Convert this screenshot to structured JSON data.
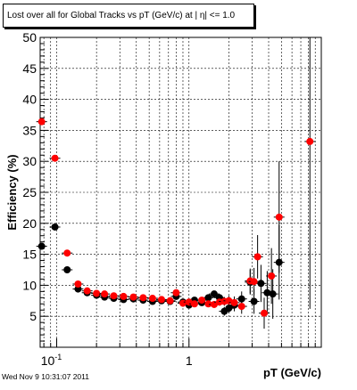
{
  "title": "Lost over all for Global Tracks vs pT (GeV/c) at |  η| <= 1.0",
  "footer": "Wed Nov  9 10:31:07 2011",
  "chart_data": {
    "type": "scatter",
    "xlabel": "pT (GeV/c)",
    "ylabel": "Efficiency (%)",
    "xscale": "log",
    "xlim": [
      0.075,
      10
    ],
    "ylim": [
      0,
      50
    ],
    "yticks": [
      5,
      10,
      15,
      20,
      25,
      30,
      35,
      40,
      45,
      50
    ],
    "xtick_labels": [
      "10^-1",
      "1"
    ],
    "grid": true,
    "series": [
      {
        "color": "#000000",
        "points": [
          {
            "x": 0.077,
            "y": 16.3,
            "err": 0
          },
          {
            "x": 0.097,
            "y": 19.4,
            "err": 0
          },
          {
            "x": 0.12,
            "y": 12.5,
            "err": 0
          },
          {
            "x": 0.145,
            "y": 9.4,
            "err": 0
          },
          {
            "x": 0.17,
            "y": 8.8,
            "err": 0
          },
          {
            "x": 0.2,
            "y": 8.4,
            "err": 0
          },
          {
            "x": 0.23,
            "y": 8.1,
            "err": 0
          },
          {
            "x": 0.27,
            "y": 7.9,
            "err": 0
          },
          {
            "x": 0.32,
            "y": 7.7,
            "err": 0
          },
          {
            "x": 0.38,
            "y": 7.8,
            "err": 0
          },
          {
            "x": 0.45,
            "y": 7.6,
            "err": 0
          },
          {
            "x": 0.53,
            "y": 7.4,
            "err": 0
          },
          {
            "x": 0.62,
            "y": 7.5,
            "err": 0
          },
          {
            "x": 0.72,
            "y": 7.4,
            "err": 0
          },
          {
            "x": 0.8,
            "y": 8.2,
            "err": 0
          },
          {
            "x": 0.9,
            "y": 7.3,
            "err": 0
          },
          {
            "x": 1.0,
            "y": 6.8,
            "err": 0
          },
          {
            "x": 1.1,
            "y": 7.6,
            "err": 0
          },
          {
            "x": 1.25,
            "y": 7.2,
            "err": 0
          },
          {
            "x": 1.4,
            "y": 8.0,
            "err": 0.4
          },
          {
            "x": 1.55,
            "y": 8.6,
            "err": 0.5
          },
          {
            "x": 1.7,
            "y": 8.0,
            "err": 0.6
          },
          {
            "x": 1.85,
            "y": 5.8,
            "err": 0.7
          },
          {
            "x": 2.0,
            "y": 6.3,
            "err": 0.8
          },
          {
            "x": 2.2,
            "y": 6.8,
            "err": 1.0
          },
          {
            "x": 2.5,
            "y": 7.8,
            "err": 1.2
          },
          {
            "x": 2.9,
            "y": 10.5,
            "err": 2.0
          },
          {
            "x": 3.1,
            "y": 7.4,
            "err": 2.0
          },
          {
            "x": 3.5,
            "y": 10.3,
            "err": 3.0
          },
          {
            "x": 3.9,
            "y": 8.8,
            "err": 3.5
          },
          {
            "x": 4.3,
            "y": 8.6,
            "err": 4.0
          },
          {
            "x": 4.8,
            "y": 13.7,
            "err": 6.0
          }
        ]
      },
      {
        "color": "#ff0000",
        "points": [
          {
            "x": 0.077,
            "y": 36.4,
            "err": 0
          },
          {
            "x": 0.097,
            "y": 30.5,
            "err": 0
          },
          {
            "x": 0.12,
            "y": 15.2,
            "err": 0
          },
          {
            "x": 0.145,
            "y": 10.2,
            "err": 0
          },
          {
            "x": 0.17,
            "y": 9.1,
            "err": 0
          },
          {
            "x": 0.2,
            "y": 8.7,
            "err": 0
          },
          {
            "x": 0.23,
            "y": 8.6,
            "err": 0
          },
          {
            "x": 0.27,
            "y": 8.3,
            "err": 0
          },
          {
            "x": 0.32,
            "y": 8.2,
            "err": 0
          },
          {
            "x": 0.38,
            "y": 8.1,
            "err": 0
          },
          {
            "x": 0.45,
            "y": 8.0,
            "err": 0
          },
          {
            "x": 0.53,
            "y": 7.9,
            "err": 0
          },
          {
            "x": 0.62,
            "y": 7.7,
            "err": 0
          },
          {
            "x": 0.72,
            "y": 7.5,
            "err": 0
          },
          {
            "x": 0.8,
            "y": 8.8,
            "err": 0
          },
          {
            "x": 0.9,
            "y": 7.1,
            "err": 0
          },
          {
            "x": 1.0,
            "y": 7.3,
            "err": 0
          },
          {
            "x": 1.1,
            "y": 7.0,
            "err": 0
          },
          {
            "x": 1.25,
            "y": 7.6,
            "err": 0
          },
          {
            "x": 1.4,
            "y": 7.0,
            "err": 0.4
          },
          {
            "x": 1.55,
            "y": 6.9,
            "err": 0.5
          },
          {
            "x": 1.7,
            "y": 7.3,
            "err": 0.6
          },
          {
            "x": 1.85,
            "y": 7.4,
            "err": 0.7
          },
          {
            "x": 2.0,
            "y": 7.5,
            "err": 0.8
          },
          {
            "x": 2.2,
            "y": 7.2,
            "err": 1.0
          },
          {
            "x": 2.5,
            "y": 6.6,
            "err": 1.2
          },
          {
            "x": 2.9,
            "y": 10.7,
            "err": 2.0
          },
          {
            "x": 3.1,
            "y": 10.6,
            "err": 2.2
          },
          {
            "x": 3.3,
            "y": 14.6,
            "err": 3.5
          },
          {
            "x": 3.7,
            "y": 5.5,
            "err": 2.5
          },
          {
            "x": 4.2,
            "y": 11.5,
            "err": 4.5
          },
          {
            "x": 4.8,
            "y": 21.0,
            "err": 9.0
          },
          {
            "x": 8.2,
            "y": 33.2,
            "err": 27.0
          }
        ]
      }
    ]
  }
}
